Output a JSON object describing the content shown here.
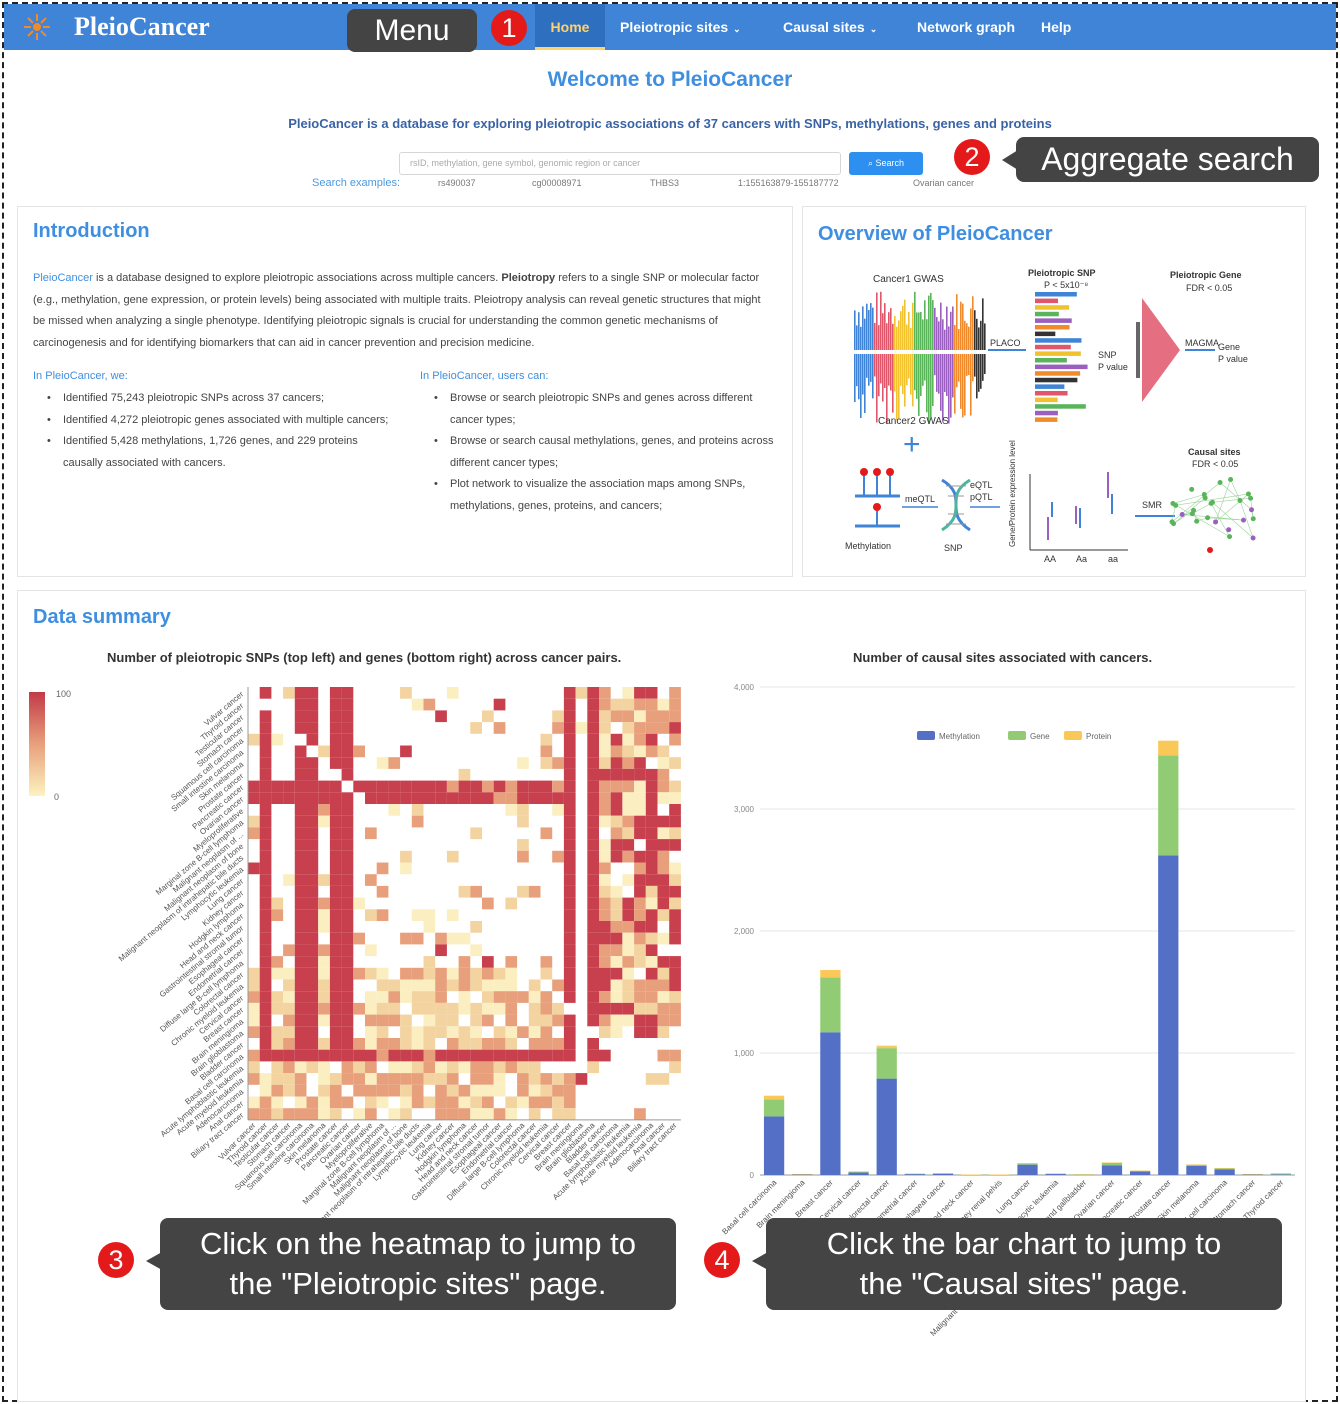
{
  "nav": {
    "logo": "PleioCancer",
    "items": [
      {
        "label": "Home",
        "caret": false,
        "active": true
      },
      {
        "label": "Pleiotropic sites",
        "caret": true,
        "active": false
      },
      {
        "label": "Causal sites",
        "caret": true,
        "active": false
      },
      {
        "label": "Network graph",
        "caret": false,
        "active": false
      },
      {
        "label": "Help",
        "caret": false,
        "active": false
      }
    ]
  },
  "callouts": {
    "menu": {
      "num": "1",
      "text": "Menu"
    },
    "search": {
      "num": "2",
      "text": "Aggregate search"
    },
    "heatmap": {
      "num": "3",
      "line1": "Click on the heatmap to jump to",
      "line2": "the \"Pleiotropic sites\" page."
    },
    "bar": {
      "num": "4",
      "line1": "Click the bar chart to jump to",
      "line2": "the \"Causal sites\" page."
    }
  },
  "welcome": "Welcome to PleioCancer",
  "tagline": "PleioCancer is a database for exploring pleiotropic associations of 37 cancers with SNPs, methylations, genes and proteins",
  "search": {
    "placeholder": "rsID, methylation, gene symbol, genomic region or cancer",
    "button": "Search",
    "examples_label": "Search examples:",
    "examples": [
      "rs490037",
      "cg00008971",
      "THBS3",
      "1:155163879-155187772",
      "Ovarian cancer"
    ]
  },
  "intro": {
    "title": "Introduction",
    "p_lead": "PleioCancer",
    "p_body": " is a database designed to explore pleiotropic associations across multiple cancers. ",
    "p_bold": "Pleiotropy",
    "p_rest": " refers to a single SNP or molecular factor (e.g., methylation, gene expression, or protein levels) being associated with multiple traits. Pleiotropy analysis can reveal genetic structures that might be missed when analyzing a single phenotype. Identifying pleiotropic signals is crucial for understanding the common genetic mechanisms of carcinogenesis and for identifying biomarkers that can aid in cancer prevention and precision medicine.",
    "we_head": "In PleioCancer, we:",
    "we_items": [
      "Identified 75,243 pleiotropic SNPs across 37 cancers;",
      "Identified 4,272 pleiotropic genes associated with multiple cancers;",
      "Identified 5,428 methylations, 1,726 genes, and 229 proteins causally associated with cancers."
    ],
    "users_head": "In PleioCancer, users can:",
    "users_items": [
      "Browse or search pleiotropic SNPs and genes across different cancer types;",
      "Browse or search causal methylations, genes, and proteins across different cancer types;",
      "Plot network to visualize the association maps among SNPs, methylations, genes, proteins, and cancers;"
    ]
  },
  "overview": {
    "title": "Overview of PleioCancer",
    "labels": {
      "cancer1": "Cancer1 GWAS",
      "cancer2": "Cancer2 GWAS",
      "pleio_snp": "Pleiotropic SNP",
      "pleio_snp_th": "P < 5x10⁻⁸",
      "pleio_gene": "Pleiotropic Gene",
      "pleio_gene_th": "FDR < 0.05",
      "placo": "PLACO",
      "snp_p": "SNP",
      "snp_p2": "P value",
      "magma": "MAGMA",
      "gene_p": "Gene",
      "gene_p2": "P value",
      "meqtl": "meQTL",
      "eqtl": "eQTL",
      "pqtl": "pQTL",
      "methylation": "Methylation",
      "snp": "SNP",
      "expr": "Gene/Protein expression level",
      "aa1": "AA",
      "aa2": "Aa",
      "aa3": "aa",
      "smr": "SMR",
      "causal": "Causal sites",
      "causal_th": "FDR < 0.05"
    }
  },
  "summary": {
    "title": "Data summary",
    "heatmap_title": "Number of pleiotropic SNPs (top left) and genes (bottom right) across cancer pairs.",
    "legend_max": "100",
    "legend_min": "0",
    "bar_title": "Number of causal sites associated with cancers."
  },
  "chart_data": [
    {
      "type": "heatmap",
      "title": "Number of pleiotropic SNPs (top left) and genes (bottom right) across cancer pairs.",
      "color_range": [
        0,
        100
      ],
      "row_labels": [
        "Vulvar cancer",
        "Thyroid cancer",
        "Testicular cancer",
        "Stomach cancer",
        "Squamous cell carcinoma",
        "Small intestine carcinoma",
        "Skin melanoma",
        "Prostate cancer",
        "Pancreatic cancer",
        "Ovarian cancer",
        "Myeloproliferative",
        "Marginal zone B-cell lymphoma",
        "Malignant neoplasm of ...",
        "Malignant neoplasm of bone",
        "Malignant neoplasm of intrahepatic bile ducts",
        "Lymphocytic leukemia",
        "Lung cancer",
        "Kidney cancer",
        "Hodgkin lymphoma",
        "Head and neck cancer",
        "Gastrointestinal stromal tumor",
        "Esophageal cancer",
        "Endometrial cancer",
        "Diffuse large B-cell lymphoma",
        "Colorectal cancer",
        "Chronic myeloid leukemia",
        "Cervical cancer",
        "Breast cancer",
        "Brain meningioma",
        "Brain glioblastoma",
        "Bladder cancer",
        "Basal cell carcinoma",
        "Acute lymphoblastic leukemia",
        "Acute myeloid leukemia",
        "Adenocarcinoma",
        "Anal cancer",
        "Biliary tract cancer"
      ]
    },
    {
      "type": "bar",
      "title": "Number of causal sites associated with cancers.",
      "ylim": [
        0,
        4000
      ],
      "yticks": [
        "0",
        "1,000",
        "2,000",
        "3,000",
        "4,000"
      ],
      "categories": [
        "Basal cell carcinoma",
        "Brain meningioma",
        "Breast cancer",
        "Cervical cancer",
        "Colorectal cancer",
        "Endometrial cancer",
        "Esophageal cancer",
        "Head and neck cancer",
        "Kidney renal pelvis",
        "Lung cancer",
        "Lymphocytic leukemia",
        "Malignant neoplasm of intrahepatic bile ducts and gallbladder",
        "Ovarian cancer",
        "Pancreatic cancer",
        "Prostate cancer",
        "Skin melanoma",
        "Small cell carcinoma",
        "Stomach cancer",
        "Thyroid cancer"
      ],
      "series": [
        {
          "name": "Methylation",
          "color": "#5470c6",
          "values": [
            480,
            5,
            1170,
            20,
            790,
            8,
            10,
            3,
            3,
            85,
            8,
            4,
            80,
            30,
            2620,
            75,
            45,
            5,
            5
          ]
        },
        {
          "name": "Gene",
          "color": "#91cc75",
          "values": [
            140,
            3,
            450,
            8,
            250,
            3,
            5,
            1,
            1,
            10,
            4,
            2,
            20,
            5,
            820,
            10,
            10,
            3,
            8
          ]
        },
        {
          "name": "Protein",
          "color": "#fac858",
          "values": [
            30,
            0,
            60,
            2,
            20,
            1,
            1,
            0,
            0,
            2,
            1,
            0,
            3,
            1,
            120,
            2,
            2,
            0,
            1
          ]
        }
      ]
    }
  ]
}
